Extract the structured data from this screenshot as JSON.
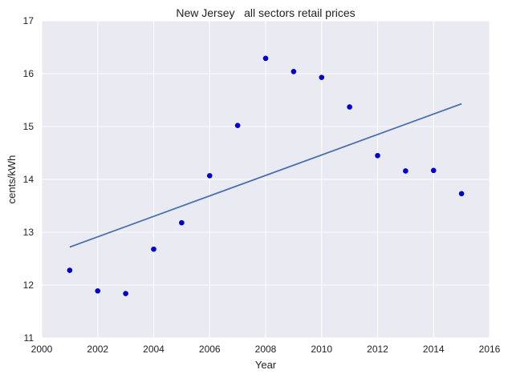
{
  "chart_data": {
    "type": "scatter",
    "title": "New Jersey   all sectors retail prices",
    "xlabel": "Year",
    "ylabel": "cents/kWh",
    "xlim": [
      2000,
      2016
    ],
    "ylim": [
      11,
      17
    ],
    "xticks": [
      2000,
      2002,
      2004,
      2006,
      2008,
      2010,
      2012,
      2014,
      2016
    ],
    "yticks": [
      11,
      12,
      13,
      14,
      15,
      16,
      17
    ],
    "grid": true,
    "legend": "none",
    "series": [
      {
        "kind": "scatter",
        "color": "#0000cc",
        "x": [
          2001,
          2002,
          2003,
          2004,
          2005,
          2006,
          2007,
          2008,
          2009,
          2010,
          2011,
          2012,
          2013,
          2014,
          2015
        ],
        "y": [
          12.28,
          11.89,
          11.84,
          12.68,
          13.18,
          14.07,
          15.02,
          16.29,
          16.04,
          15.93,
          15.37,
          14.45,
          14.16,
          14.17,
          13.73
        ]
      },
      {
        "kind": "line",
        "color": "#4c72b0",
        "x": [
          2001,
          2015
        ],
        "y": [
          12.72,
          15.43
        ]
      }
    ]
  },
  "colors": {
    "plot_background": "#eaeaf2",
    "grid": "#ffffff"
  }
}
